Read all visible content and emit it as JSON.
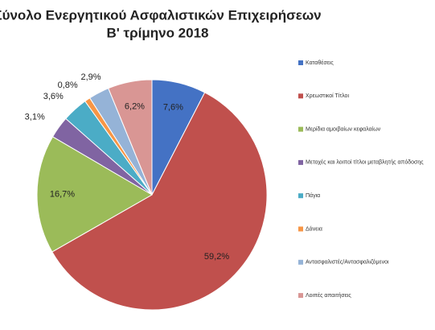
{
  "chart_data": {
    "type": "pie",
    "title": "Σύνολο Ενεργητικού Ασφαλιστικών Επιχειρήσεων",
    "subtitle": "Β' τρίμηνο 2018",
    "categories": [
      "Καταθέσεις",
      "Χρεωστικοί Τίτλοι",
      "Μερίδια αμοιβαίων κεφαλαίων",
      "Μετοχές και λοιποί τίτλοι μεταβλητής απόδοσης",
      "Πάγια",
      "Δάνεια",
      "Αντασφαλιστές/Αντασφαλιζόμενοι",
      "Λοιπές απαιτήσεις"
    ],
    "values": [
      7.6,
      59.2,
      16.7,
      3.1,
      3.6,
      0.8,
      2.9,
      6.2
    ],
    "value_labels": [
      "7,6%",
      "59,2%",
      "16,7%",
      "3,1%",
      "3,6%",
      "0,8%",
      "2,9%",
      "6,2%"
    ],
    "colors": [
      "#4472c4",
      "#c0504d",
      "#9bbb59",
      "#8064a2",
      "#4bacc6",
      "#f79646",
      "#95b3d7",
      "#d99694"
    ],
    "legend": "right"
  }
}
